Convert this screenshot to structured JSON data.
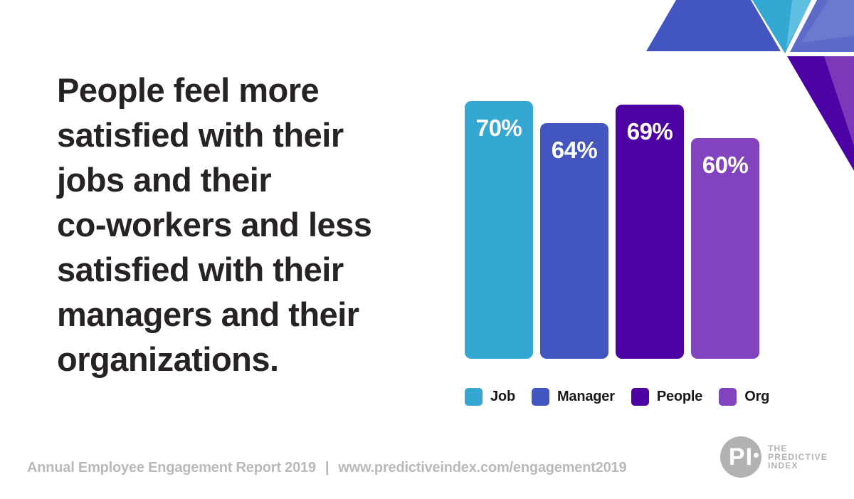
{
  "headline": {
    "lines": [
      "People feel more",
      "satisfied with their",
      "jobs and their",
      "co-workers and less",
      "satisfied with their",
      "managers and their",
      "organizations."
    ]
  },
  "chart_data": {
    "type": "bar",
    "categories": [
      "Job",
      "Manager",
      "People",
      "Org"
    ],
    "values": [
      70,
      64,
      69,
      60
    ],
    "labels": [
      "70%",
      "64%",
      "69%",
      "60%"
    ],
    "colors": [
      "#35A7D3",
      "#4356BF",
      "#4D03A4",
      "#8243BE"
    ],
    "unit": "%",
    "title": "",
    "xlabel": "",
    "ylabel": "",
    "ylim": [
      0,
      70
    ],
    "grid": false,
    "legend_position": "bottom"
  },
  "legend": {
    "items": [
      {
        "label": "Job",
        "color": "#35A7D3"
      },
      {
        "label": "Manager",
        "color": "#4356BF"
      },
      {
        "label": "People",
        "color": "#4D03A4"
      },
      {
        "label": "Org",
        "color": "#8243BE"
      }
    ]
  },
  "footer": {
    "report": "Annual Employee Engagement Report 2019",
    "separator": "|",
    "url": "www.predictiveindex.com/engagement2019"
  },
  "logo": {
    "monogram_p": "P",
    "monogram_i": "I",
    "name_lines": [
      "THE",
      "PREDICTIVE",
      "INDEX"
    ]
  },
  "colors": {
    "background": "#FFFFFF",
    "headline_text": "#272224",
    "footer_text": "#B9B9BB",
    "logo_gray": "#B3B2B3",
    "cyan": "#35A7D3",
    "cyan_light": "#5FC0E1",
    "blue": "#4356BF",
    "periwinkle": "#5C6BC7",
    "periwinkle_light": "#6B79CE",
    "dark_purple": "#4D03A4",
    "purple": "#8243BE",
    "purple_mid": "#7B39B9"
  }
}
